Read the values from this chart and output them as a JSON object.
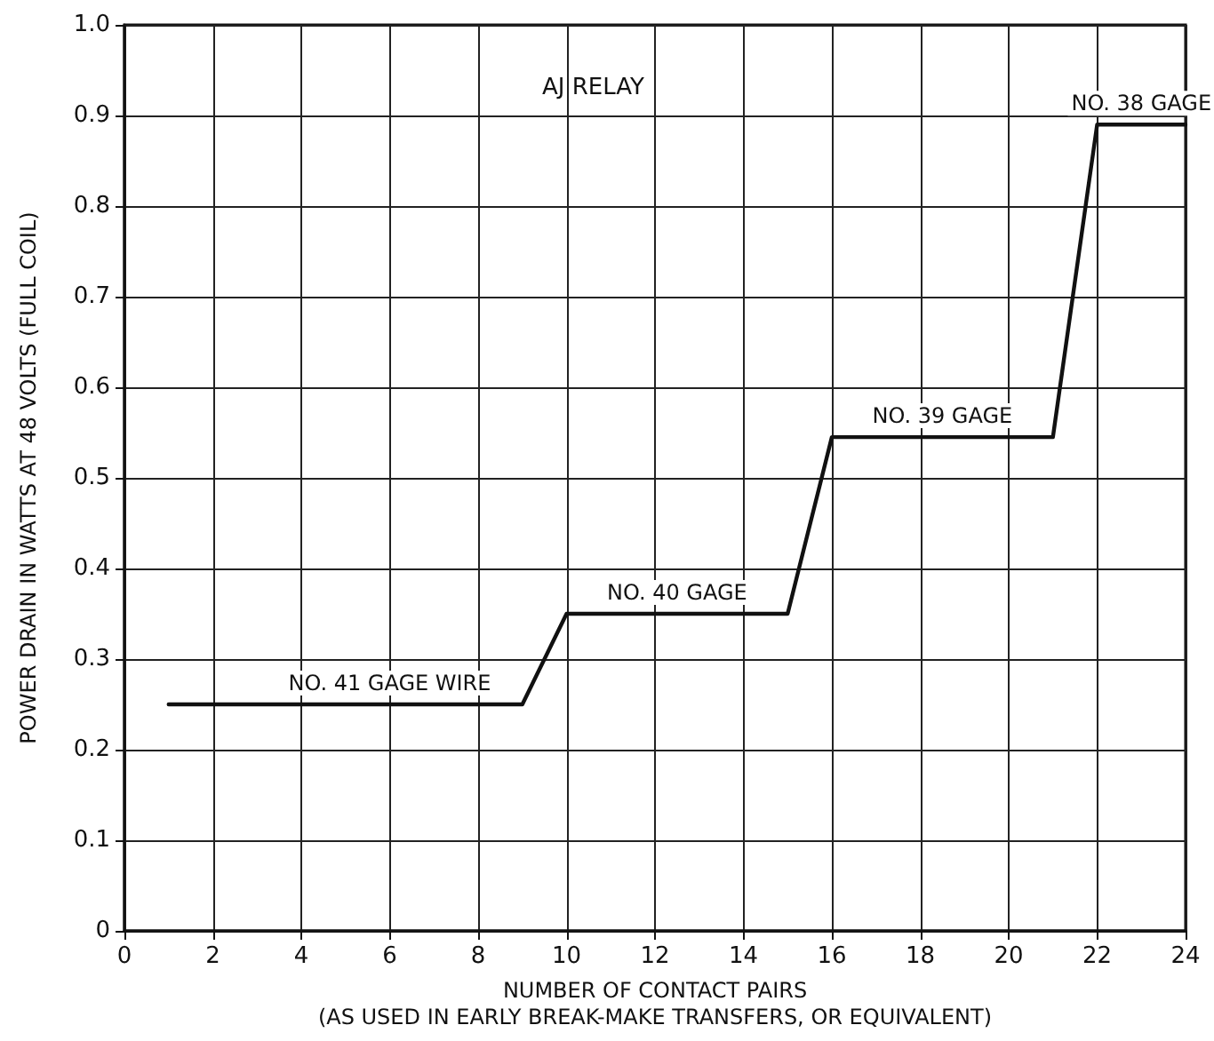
{
  "chart_data": {
    "type": "line",
    "title": "AJ RELAY",
    "xlabel": "NUMBER OF CONTACT PAIRS\n(AS USED IN EARLY BREAK-MAKE TRANSFERS, OR EQUIVALENT)",
    "ylabel": "POWER DRAIN IN WATTS AT 48 VOLTS (FULL COIL)",
    "x": [
      1,
      9,
      10,
      15,
      16,
      21,
      22,
      24
    ],
    "series": [
      {
        "color": "#111111",
        "values": [
          0.25,
          0.25,
          0.35,
          0.35,
          0.545,
          0.545,
          0.89,
          0.89
        ]
      }
    ],
    "xlim": [
      0,
      24
    ],
    "xticks": [
      0,
      2,
      4,
      6,
      8,
      10,
      12,
      14,
      16,
      18,
      20,
      22,
      24
    ],
    "ylim": [
      0,
      1
    ],
    "yticks": [
      0,
      0.1,
      0.2,
      0.3,
      0.4,
      0.5,
      0.6,
      0.7,
      0.8,
      0.9,
      {
        "value": 1,
        "label": "1.0"
      }
    ],
    "grid": true,
    "marker": "none",
    "line_style": "solid",
    "annotations": [
      {
        "text": "NO. 41 GAGE WIRE",
        "x": 6,
        "y": 0.25
      },
      {
        "text": "NO. 40 GAGE",
        "x": 12.5,
        "y": 0.35
      },
      {
        "text": "NO. 39 GAGE",
        "x": 18.5,
        "y": 0.545
      },
      {
        "text": "NO. 38 GAGE",
        "x": 23,
        "y": 0.89
      }
    ]
  }
}
